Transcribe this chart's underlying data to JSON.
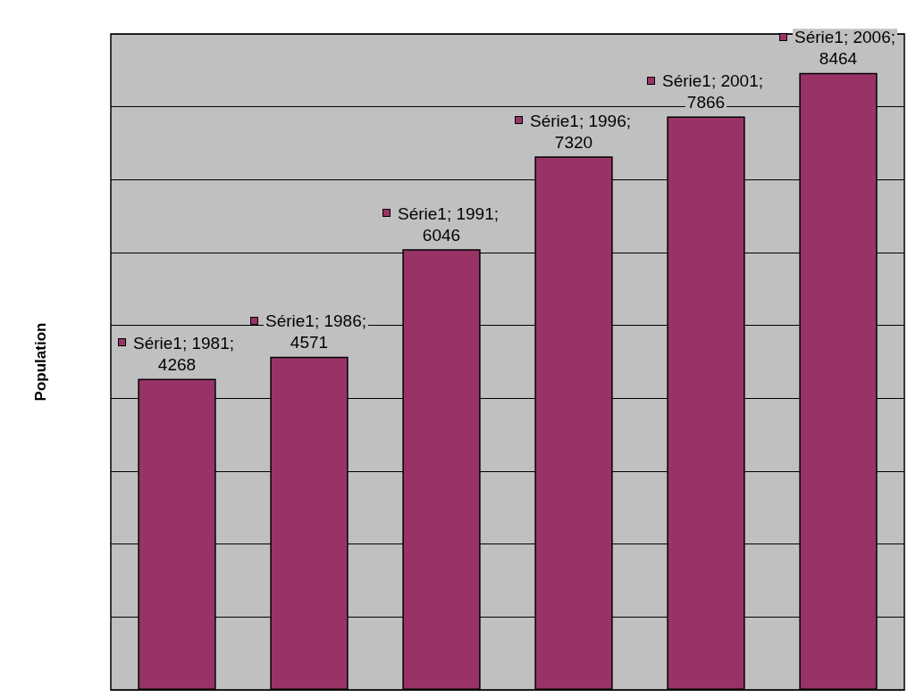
{
  "chart_data": {
    "type": "bar",
    "ylabel": "Population",
    "categories": [
      null,
      null,
      null,
      null,
      null,
      null
    ],
    "series": [
      {
        "color": "#993366",
        "values": [
          4268,
          4571,
          6046,
          7320,
          7866,
          8464
        ],
        "value_labels": [
          "Série1; 1981; 4268",
          "Série1; 1986; 4571",
          "Série1; 1991; 6046",
          "Série1; 1996; 7320",
          "Série1; 2001; 7866",
          "Série1; 2006; 8464"
        ]
      }
    ],
    "ylim": [
      0,
      9000
    ],
    "yticks": [
      {
        "value": 0,
        "label": null
      },
      {
        "value": 1000,
        "label": null
      },
      {
        "value": 2000,
        "label": null
      },
      {
        "value": 3000,
        "label": null
      },
      {
        "value": 4000,
        "label": null
      },
      {
        "value": 5000,
        "label": null
      },
      {
        "value": 6000,
        "label": null
      },
      {
        "value": 7000,
        "label": null
      },
      {
        "value": 8000,
        "label": null
      },
      {
        "value": 9000,
        "label": null
      }
    ],
    "grid": "y"
  }
}
